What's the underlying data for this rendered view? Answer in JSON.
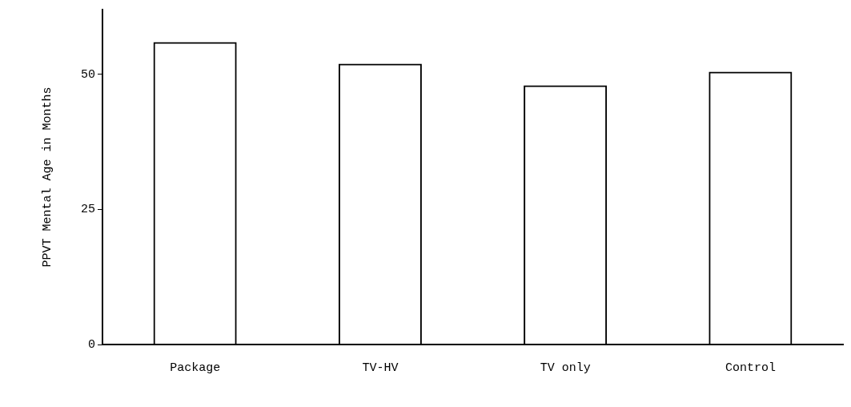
{
  "chart_data": {
    "type": "bar",
    "ylabel": "PPVT Mental Age in Months",
    "categories": [
      "Package",
      "TV-HV",
      "TV only",
      "Control"
    ],
    "values": [
      56,
      52,
      48,
      50.5
    ],
    "color": "#000000",
    "ylim": [
      0,
      62
    ],
    "yticks": [
      0,
      25,
      50
    ],
    "grid": false,
    "legend": false
  }
}
